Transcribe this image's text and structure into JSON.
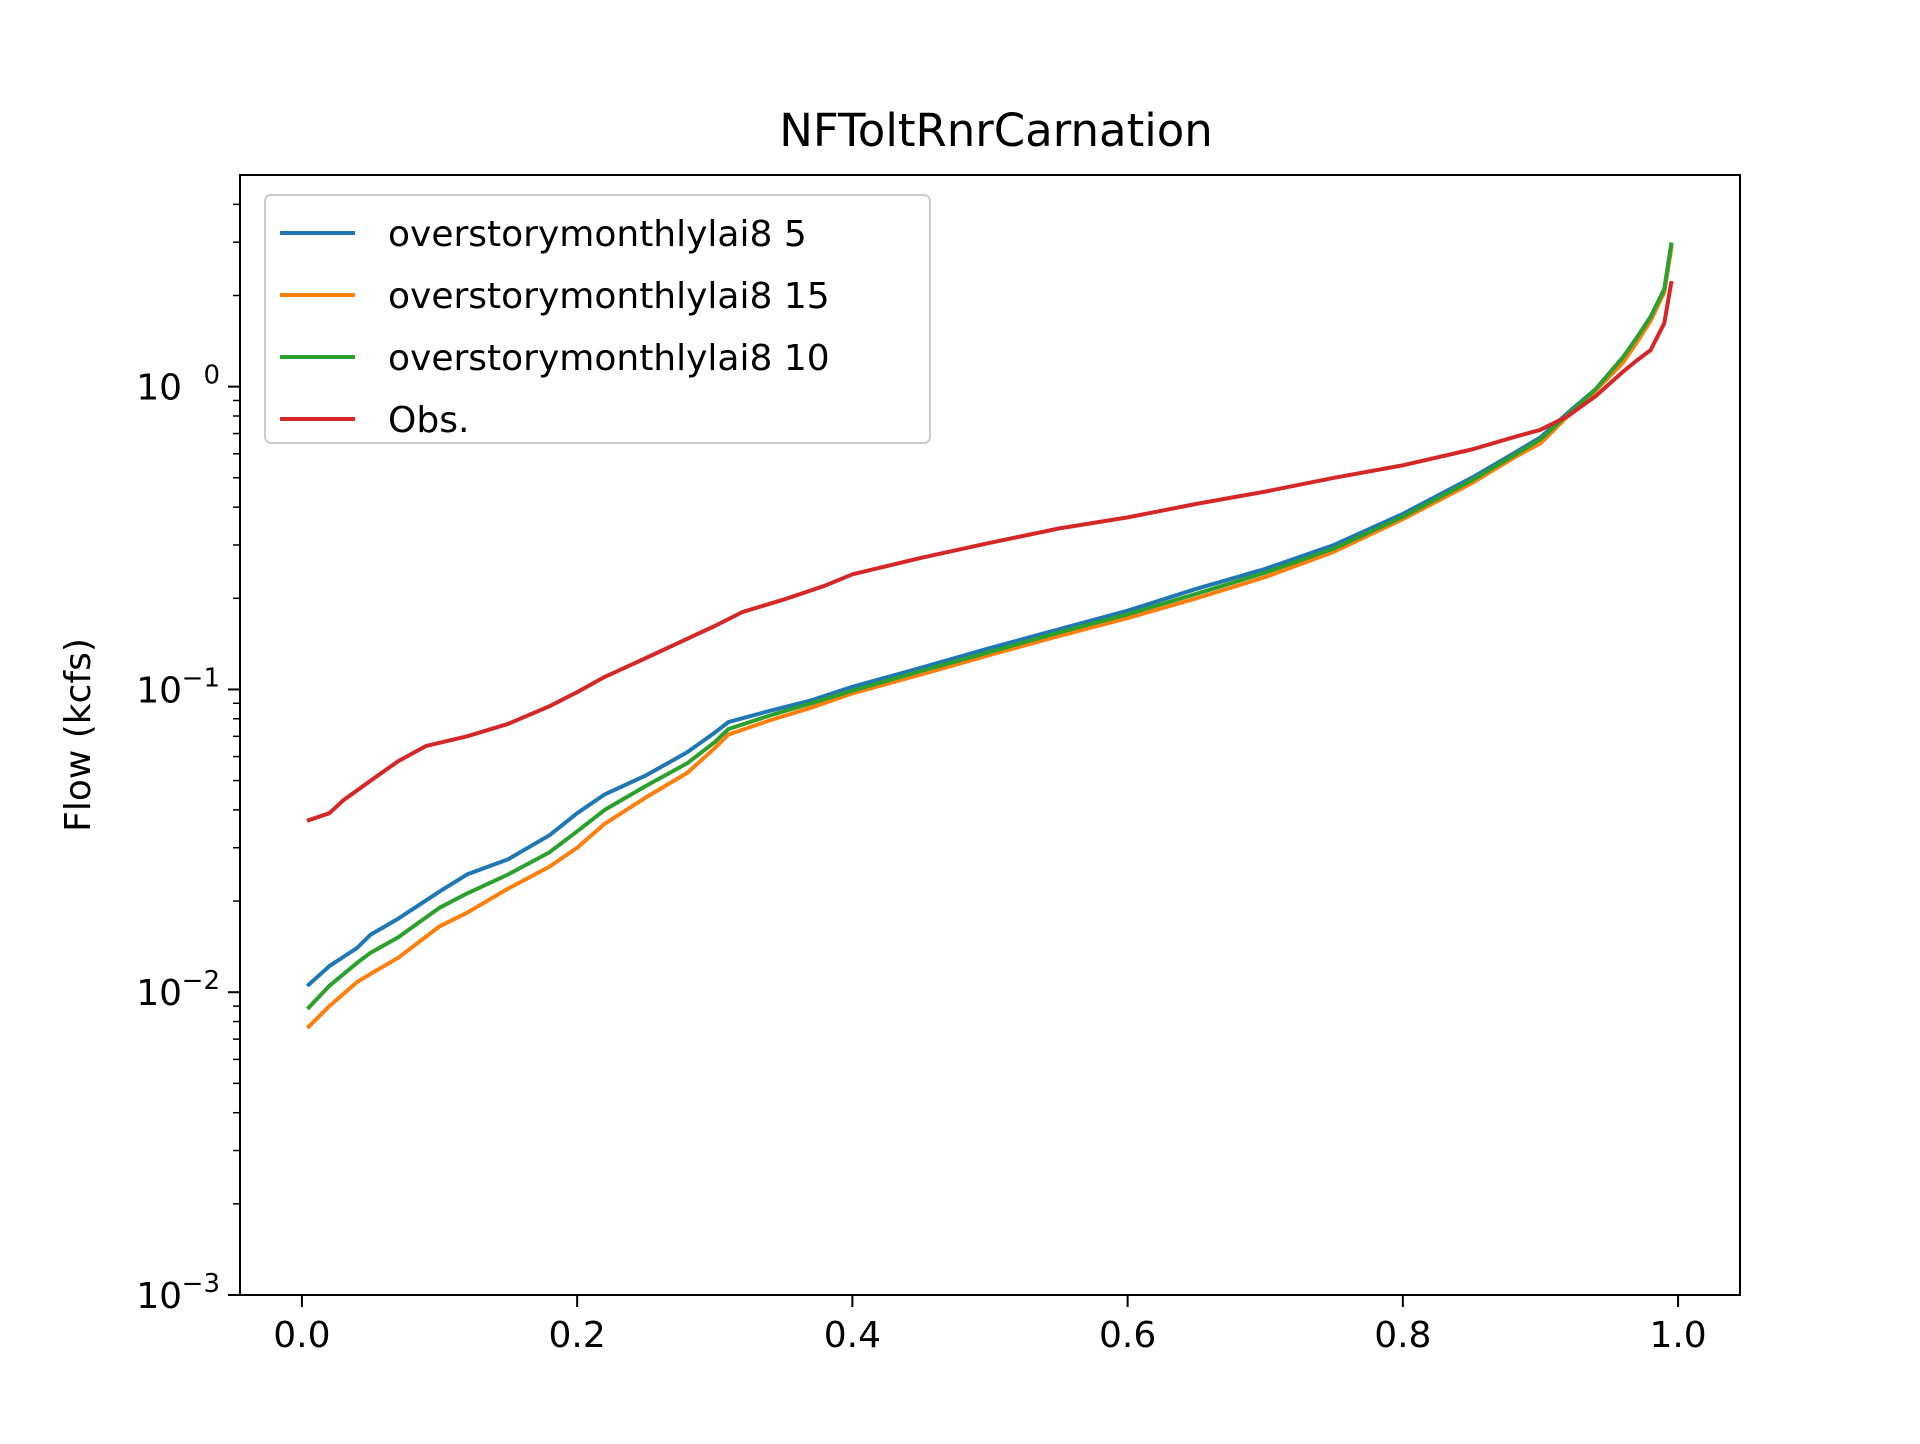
{
  "chart_data": {
    "type": "line",
    "title": "NFToltRnrCarnation",
    "xlabel": "",
    "ylabel": "Flow (kcfs)",
    "xlim": [
      -0.045,
      1.045
    ],
    "ylim": [
      0.001,
      5.0
    ],
    "yscale": "log",
    "grid": false,
    "legend_position": "top-left",
    "x_ticks": [
      0.0,
      0.2,
      0.4,
      0.6,
      0.8,
      1.0
    ],
    "x_tick_labels": [
      "0.0",
      "0.2",
      "0.4",
      "0.6",
      "0.8",
      "1.0"
    ],
    "y_ticks": [
      0.001,
      0.01,
      0.1,
      1.0
    ],
    "y_tick_labels": [
      {
        "base": "10",
        "exp": "−3"
      },
      {
        "base": "10",
        "exp": "−2"
      },
      {
        "base": "10",
        "exp": "−1"
      },
      {
        "base": "10",
        "exp": "0"
      }
    ],
    "series": [
      {
        "name": "overstorymonthlylai8 5",
        "color": "#1f77b4",
        "points": [
          [
            0.005,
            0.0106
          ],
          [
            0.02,
            0.0122
          ],
          [
            0.04,
            0.014
          ],
          [
            0.05,
            0.0155
          ],
          [
            0.07,
            0.0175
          ],
          [
            0.1,
            0.0215
          ],
          [
            0.12,
            0.0245
          ],
          [
            0.15,
            0.0275
          ],
          [
            0.18,
            0.033
          ],
          [
            0.2,
            0.039
          ],
          [
            0.22,
            0.045
          ],
          [
            0.25,
            0.052
          ],
          [
            0.28,
            0.062
          ],
          [
            0.3,
            0.072
          ],
          [
            0.31,
            0.078
          ],
          [
            0.34,
            0.085
          ],
          [
            0.37,
            0.092
          ],
          [
            0.4,
            0.102
          ],
          [
            0.45,
            0.118
          ],
          [
            0.5,
            0.137
          ],
          [
            0.55,
            0.158
          ],
          [
            0.6,
            0.182
          ],
          [
            0.65,
            0.215
          ],
          [
            0.7,
            0.25
          ],
          [
            0.75,
            0.3
          ],
          [
            0.8,
            0.38
          ],
          [
            0.85,
            0.5
          ],
          [
            0.88,
            0.6
          ],
          [
            0.9,
            0.68
          ],
          [
            0.92,
            0.82
          ],
          [
            0.94,
            0.98
          ],
          [
            0.96,
            1.25
          ],
          [
            0.97,
            1.45
          ],
          [
            0.98,
            1.7
          ],
          [
            0.99,
            2.1
          ],
          [
            0.995,
            2.9
          ]
        ]
      },
      {
        "name": "overstorymonthlylai8 15",
        "color": "#ff7f0e",
        "points": [
          [
            0.005,
            0.0077
          ],
          [
            0.02,
            0.009
          ],
          [
            0.04,
            0.0108
          ],
          [
            0.05,
            0.0115
          ],
          [
            0.07,
            0.013
          ],
          [
            0.1,
            0.0165
          ],
          [
            0.12,
            0.0183
          ],
          [
            0.15,
            0.022
          ],
          [
            0.18,
            0.026
          ],
          [
            0.2,
            0.03
          ],
          [
            0.22,
            0.036
          ],
          [
            0.25,
            0.044
          ],
          [
            0.28,
            0.053
          ],
          [
            0.3,
            0.064
          ],
          [
            0.31,
            0.071
          ],
          [
            0.34,
            0.079
          ],
          [
            0.37,
            0.087
          ],
          [
            0.4,
            0.097
          ],
          [
            0.45,
            0.112
          ],
          [
            0.5,
            0.13
          ],
          [
            0.55,
            0.15
          ],
          [
            0.6,
            0.172
          ],
          [
            0.65,
            0.2
          ],
          [
            0.7,
            0.235
          ],
          [
            0.75,
            0.285
          ],
          [
            0.8,
            0.365
          ],
          [
            0.85,
            0.48
          ],
          [
            0.88,
            0.58
          ],
          [
            0.9,
            0.65
          ],
          [
            0.92,
            0.8
          ],
          [
            0.94,
            0.97
          ],
          [
            0.96,
            1.2
          ],
          [
            0.97,
            1.4
          ],
          [
            0.98,
            1.65
          ],
          [
            0.99,
            2.05
          ],
          [
            0.995,
            2.85
          ]
        ]
      },
      {
        "name": "overstorymonthlylai8 10",
        "color": "#2ca02c",
        "points": [
          [
            0.005,
            0.0089
          ],
          [
            0.02,
            0.0105
          ],
          [
            0.04,
            0.0125
          ],
          [
            0.05,
            0.0135
          ],
          [
            0.07,
            0.0152
          ],
          [
            0.1,
            0.019
          ],
          [
            0.12,
            0.0212
          ],
          [
            0.15,
            0.0245
          ],
          [
            0.18,
            0.029
          ],
          [
            0.2,
            0.034
          ],
          [
            0.22,
            0.04
          ],
          [
            0.25,
            0.048
          ],
          [
            0.28,
            0.057
          ],
          [
            0.3,
            0.067
          ],
          [
            0.31,
            0.074
          ],
          [
            0.34,
            0.082
          ],
          [
            0.37,
            0.09
          ],
          [
            0.4,
            0.099
          ],
          [
            0.45,
            0.115
          ],
          [
            0.5,
            0.133
          ],
          [
            0.55,
            0.154
          ],
          [
            0.6,
            0.177
          ],
          [
            0.65,
            0.207
          ],
          [
            0.7,
            0.243
          ],
          [
            0.75,
            0.292
          ],
          [
            0.8,
            0.372
          ],
          [
            0.85,
            0.49
          ],
          [
            0.88,
            0.59
          ],
          [
            0.9,
            0.67
          ],
          [
            0.92,
            0.81
          ],
          [
            0.94,
            0.98
          ],
          [
            0.96,
            1.25
          ],
          [
            0.97,
            1.45
          ],
          [
            0.98,
            1.7
          ],
          [
            0.99,
            2.1
          ],
          [
            0.995,
            2.95
          ]
        ]
      },
      {
        "name": "Obs.",
        "color": "#d62728",
        "points": [
          [
            0.005,
            0.037
          ],
          [
            0.02,
            0.039
          ],
          [
            0.03,
            0.043
          ],
          [
            0.05,
            0.05
          ],
          [
            0.07,
            0.058
          ],
          [
            0.09,
            0.065
          ],
          [
            0.12,
            0.07
          ],
          [
            0.15,
            0.077
          ],
          [
            0.18,
            0.088
          ],
          [
            0.2,
            0.098
          ],
          [
            0.22,
            0.11
          ],
          [
            0.25,
            0.127
          ],
          [
            0.28,
            0.147
          ],
          [
            0.3,
            0.162
          ],
          [
            0.32,
            0.18
          ],
          [
            0.35,
            0.198
          ],
          [
            0.38,
            0.22
          ],
          [
            0.4,
            0.24
          ],
          [
            0.45,
            0.272
          ],
          [
            0.5,
            0.305
          ],
          [
            0.55,
            0.34
          ],
          [
            0.6,
            0.37
          ],
          [
            0.65,
            0.41
          ],
          [
            0.7,
            0.45
          ],
          [
            0.75,
            0.5
          ],
          [
            0.8,
            0.55
          ],
          [
            0.85,
            0.62
          ],
          [
            0.88,
            0.68
          ],
          [
            0.9,
            0.72
          ],
          [
            0.92,
            0.8
          ],
          [
            0.94,
            0.93
          ],
          [
            0.96,
            1.12
          ],
          [
            0.97,
            1.22
          ],
          [
            0.98,
            1.32
          ],
          [
            0.99,
            1.62
          ],
          [
            0.995,
            2.2
          ]
        ]
      }
    ]
  }
}
